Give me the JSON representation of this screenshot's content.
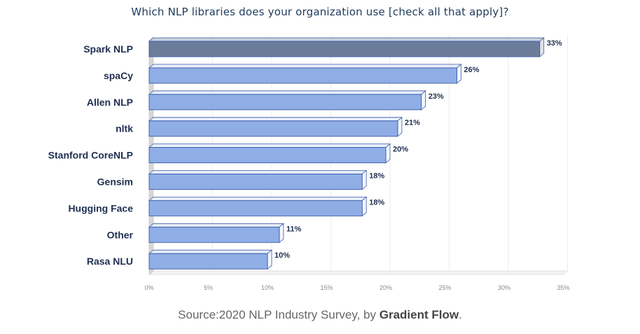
{
  "chart_data": {
    "type": "bar",
    "orientation": "horizontal",
    "title": "Which NLP libraries does your organization use [check all that apply]?",
    "categories": [
      "Spark NLP",
      "spaCy",
      "Allen NLP",
      "nltk",
      "Stanford CoreNLP",
      "Gensim",
      "Hugging Face",
      "Other",
      "Rasa NLU"
    ],
    "values": [
      33,
      26,
      23,
      21,
      20,
      18,
      18,
      11,
      10
    ],
    "value_labels": [
      "33%",
      "26%",
      "23%",
      "21%",
      "20%",
      "18%",
      "18%",
      "11%",
      "10%"
    ],
    "xlim": [
      0,
      35
    ],
    "x_ticks": [
      0,
      5,
      10,
      15,
      20,
      25,
      30,
      35
    ],
    "x_tick_labels": [
      "0%",
      "5%",
      "10%",
      "15%",
      "20%",
      "25%",
      "30%",
      "35%"
    ],
    "grid": true,
    "colors": {
      "highlight": "#6b7d9a",
      "bar": "#8faee6",
      "bar_edge": "#3a5aa8",
      "label": "#1f2f50"
    }
  },
  "source": {
    "prefix": "Source:2020 NLP Industry Survey, by ",
    "brand": "Gradient Flow",
    "suffix": "."
  }
}
